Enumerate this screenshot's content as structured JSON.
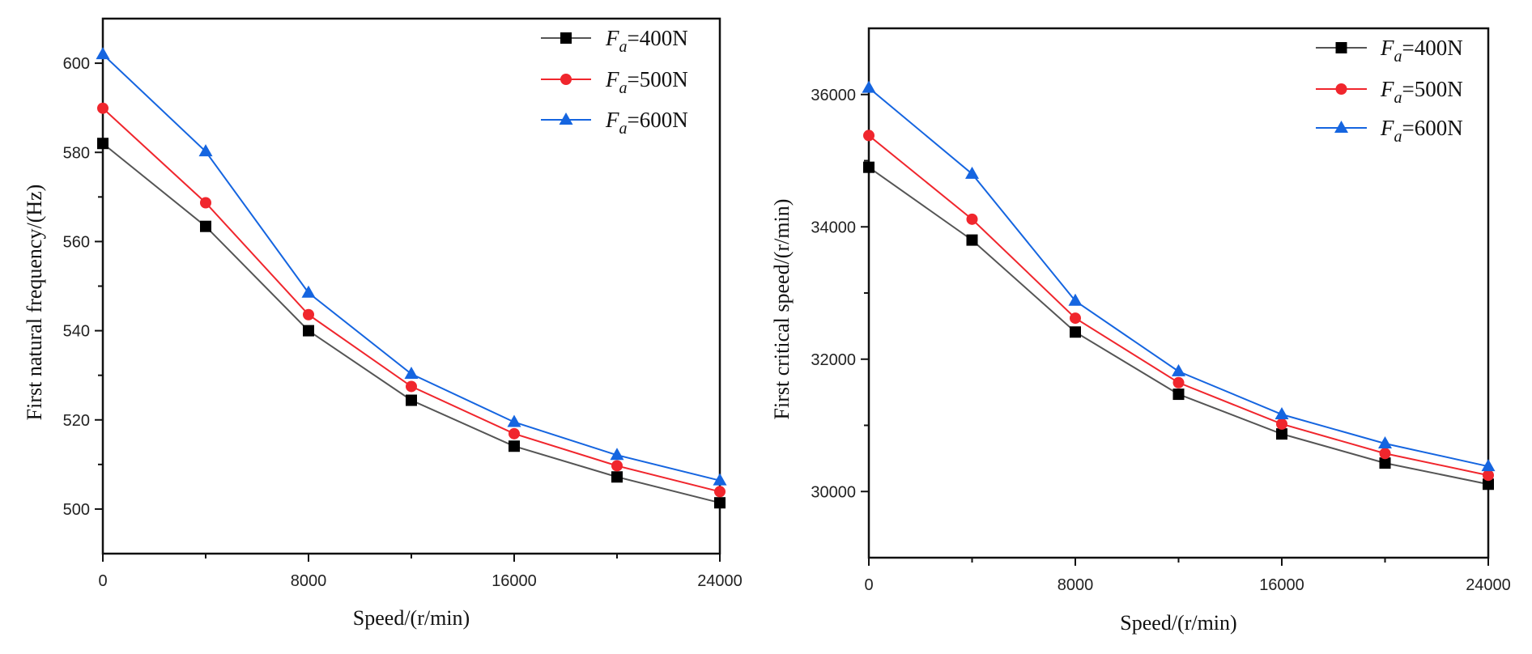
{
  "chart_data": [
    {
      "type": "line",
      "title": "",
      "xlabel": "Speed/(r/min)",
      "ylabel": "First natural frequency/(Hz)",
      "x": [
        0,
        4000,
        8000,
        12000,
        16000,
        20000,
        24000
      ],
      "xlim": [
        0,
        24000
      ],
      "ylim": [
        490,
        610
      ],
      "xticks": [
        0,
        8000,
        16000,
        24000
      ],
      "xtick_labels": [
        "0",
        "8000",
        "16000",
        "24000"
      ],
      "xminor": [
        4000,
        12000,
        20000
      ],
      "yticks": [
        500,
        520,
        540,
        560,
        580,
        600
      ],
      "ytick_labels": [
        "500",
        "520",
        "540",
        "560",
        "580",
        "600"
      ],
      "yminor": [
        510,
        530,
        550,
        570,
        590
      ],
      "grid": false,
      "legend_position": "top-right",
      "series": [
        {
          "name": "Fa=400N",
          "legend_main": "F",
          "legend_sub": "a",
          "legend_rest": "=400N",
          "color": "#000000",
          "line_color": "#555555",
          "marker": "square",
          "values": [
            582.0,
            563.4,
            540.0,
            524.4,
            514.1,
            507.2,
            501.4
          ]
        },
        {
          "name": "Fa=500N",
          "legend_main": "F",
          "legend_sub": "a",
          "legend_rest": "=500N",
          "color": "#f0262d",
          "line_color": "#f0262d",
          "marker": "circle",
          "values": [
            589.9,
            568.7,
            543.6,
            527.5,
            516.9,
            509.7,
            503.9
          ]
        },
        {
          "name": "Fa=600N",
          "legend_main": "F",
          "legend_sub": "a",
          "legend_rest": "=600N",
          "color": "#1565e0",
          "line_color": "#1565e0",
          "marker": "triangle",
          "values": [
            602.0,
            580.2,
            548.5,
            530.3,
            519.5,
            512.1,
            506.4
          ]
        }
      ]
    },
    {
      "type": "line",
      "title": "",
      "xlabel": "Speed/(r/min)",
      "ylabel": "First critical speed/(r/min)",
      "x": [
        0,
        4000,
        8000,
        12000,
        16000,
        20000,
        24000
      ],
      "xlim": [
        0,
        24000
      ],
      "ylim": [
        29000,
        37000
      ],
      "xticks": [
        0,
        8000,
        16000,
        24000
      ],
      "xtick_labels": [
        "0",
        "8000",
        "16000",
        "24000"
      ],
      "xminor": [
        4000,
        12000,
        20000
      ],
      "yticks": [
        30000,
        32000,
        34000,
        36000
      ],
      "ytick_labels": [
        "30000",
        "32000",
        "34000",
        "36000"
      ],
      "yminor": [
        29000,
        31000,
        33000,
        35000
      ],
      "grid": false,
      "legend_position": "top-right",
      "series": [
        {
          "name": "Fa=400N",
          "legend_main": "F",
          "legend_sub": "a",
          "legend_rest": "=400N",
          "color": "#000000",
          "line_color": "#555555",
          "marker": "square",
          "values": [
            34900,
            33800,
            32410,
            31470,
            30870,
            30430,
            30110
          ]
        },
        {
          "name": "Fa=500N",
          "legend_main": "F",
          "legend_sub": "a",
          "legend_rest": "=500N",
          "color": "#f0262d",
          "line_color": "#f0262d",
          "marker": "circle",
          "values": [
            35380,
            34115,
            32620,
            31645,
            31020,
            30575,
            30245
          ]
        },
        {
          "name": "Fa=600N",
          "legend_main": "F",
          "legend_sub": "a",
          "legend_rest": "=600N",
          "color": "#1565e0",
          "line_color": "#1565e0",
          "marker": "triangle",
          "values": [
            36100,
            34800,
            32880,
            31815,
            31165,
            30725,
            30380
          ]
        }
      ]
    }
  ]
}
